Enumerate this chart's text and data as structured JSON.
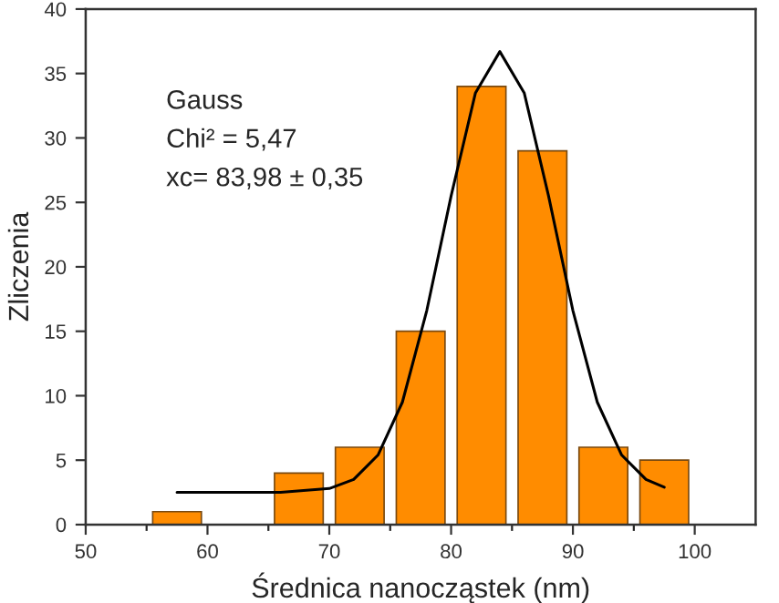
{
  "chart_data": {
    "type": "histogram",
    "xlabel": "Średnica nanocząstek (nm)",
    "ylabel": "Zliczenia",
    "bins": [
      55,
      60,
      65,
      70,
      75,
      80,
      85,
      90,
      95,
      100
    ],
    "values": [
      1,
      0,
      4,
      6,
      15,
      34,
      29,
      6,
      5
    ],
    "color": "#ff8c00",
    "series": [
      {
        "type": "line",
        "color": "#000000",
        "x": [
          57.5,
          62,
          66,
          70,
          72,
          74,
          76,
          78,
          80,
          82,
          84,
          86,
          88,
          90,
          92,
          94,
          96,
          97.5
        ],
        "values": [
          2.5,
          2.5,
          2.5,
          2.8,
          3.5,
          5.4,
          9.5,
          16.6,
          25.5,
          33.5,
          36.7,
          33.5,
          25.5,
          16.6,
          9.5,
          5.4,
          3.5,
          2.9
        ]
      }
    ],
    "annotations": [
      "Gauss",
      "Chi² = 5,47",
      "xc= 83,98 ± 0,35"
    ],
    "xlim": [
      50,
      105
    ],
    "xticks": [
      50,
      60,
      70,
      80,
      90,
      100
    ],
    "ylim": [
      0,
      40
    ],
    "yticks": [
      0,
      5,
      10,
      15,
      20,
      25,
      30,
      35,
      40
    ],
    "grid": false,
    "legend": false
  }
}
